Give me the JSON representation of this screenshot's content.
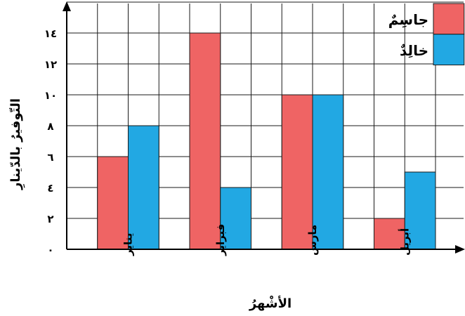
{
  "chart_data": {
    "type": "bar",
    "categories": [
      "يناير",
      "فبراير",
      "مارس",
      "أبريل"
    ],
    "series": [
      {
        "name": "جاسِمٌ",
        "color": "#ef6464",
        "values": [
          6,
          14,
          10,
          2
        ]
      },
      {
        "name": "خالِدٌ",
        "color": "#22a8e3",
        "values": [
          8,
          4,
          10,
          5
        ]
      }
    ],
    "xlabel": "الأشْهرُ",
    "ylabel": "التّوفيرُ بالدّينارِ",
    "ylim": [
      0,
      16
    ],
    "yticks": [
      {
        "value": 0,
        "label": "٠"
      },
      {
        "value": 2,
        "label": "٢"
      },
      {
        "value": 4,
        "label": "٤"
      },
      {
        "value": 6,
        "label": "٦"
      },
      {
        "value": 8,
        "label": "٨"
      },
      {
        "value": 10,
        "label": "١٠"
      },
      {
        "value": 12,
        "label": "١٢"
      },
      {
        "value": 14,
        "label": "١٤"
      }
    ],
    "grid": true,
    "legend_position": "top-right"
  }
}
